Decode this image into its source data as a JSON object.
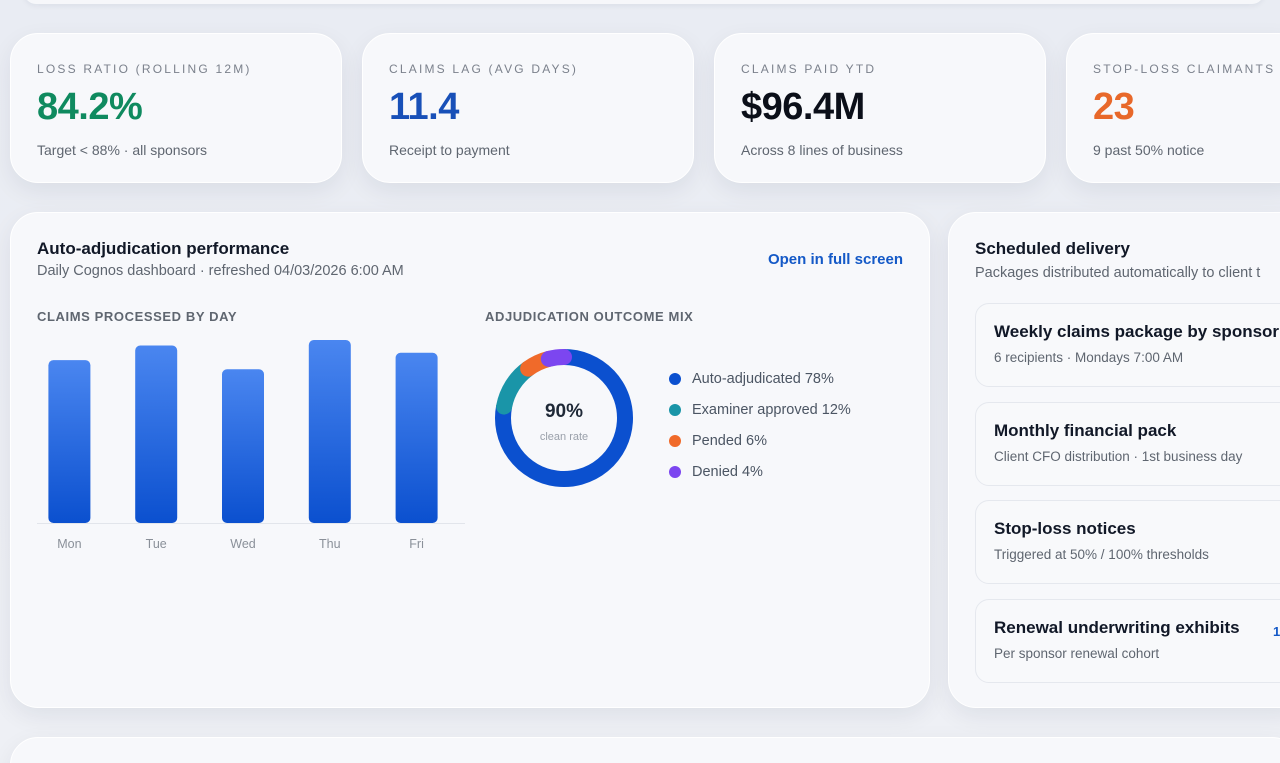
{
  "kpis": [
    {
      "label": "LOSS RATIO (ROLLING 12M)",
      "value": "84.2%",
      "sub": "Target < 88% · all sponsors",
      "color": "#0f8a5f"
    },
    {
      "label": "CLAIMS LAG (AVG DAYS)",
      "value": "11.4",
      "sub": "Receipt to payment",
      "color": "#1850b8"
    },
    {
      "label": "CLAIMS PAID YTD",
      "value": "$96.4M",
      "sub": "Across 8 lines of business",
      "color": "#0b0f19"
    },
    {
      "label": "STOP-LOSS CLAIMANTS",
      "value": "23",
      "sub": "9 past 50% notice",
      "color": "#e8682a"
    }
  ],
  "performance": {
    "title": "Auto-adjudication performance",
    "subtitle": "Daily Cognos dashboard · refreshed 04/03/2026 6:00 AM",
    "link": "Open in full screen",
    "bar_section_label": "CLAIMS PROCESSED BY DAY",
    "donut_section_label": "ADJUDICATION OUTCOME MIX",
    "donut_value": "90%",
    "donut_caption": "clean rate"
  },
  "chart_data": [
    {
      "type": "bar",
      "title": "CLAIMS PROCESSED BY DAY",
      "categories": [
        "Mon",
        "Tue",
        "Wed",
        "Thu",
        "Fri"
      ],
      "values": [
        0.89,
        0.97,
        0.84,
        1.0,
        0.93
      ],
      "ylim": [
        0,
        1
      ],
      "grid": false,
      "color": "#2f6fe6"
    },
    {
      "type": "pie",
      "title": "ADJUDICATION OUTCOME MIX",
      "series": [
        {
          "name": "Auto-adjudicated 78%",
          "value": 78,
          "color": "#0b50cf"
        },
        {
          "name": "Examiner approved 12%",
          "value": 12,
          "color": "#1a95a8"
        },
        {
          "name": "Pended 6%",
          "value": 6,
          "color": "#f06a2a"
        },
        {
          "name": "Denied 4%",
          "value": 4,
          "color": "#7c46f0"
        }
      ],
      "center_label": "90%",
      "center_caption": "clean rate"
    }
  ],
  "schedule": {
    "title": "Scheduled delivery",
    "subtitle": "Packages distributed automatically to client t",
    "items": [
      {
        "name": "Weekly claims package by sponsor",
        "desc": "6 recipients · Mondays 7:00 AM",
        "tag": ""
      },
      {
        "name": "Monthly financial pack",
        "desc": "Client CFO distribution · 1st business day",
        "tag": ""
      },
      {
        "name": "Stop-loss notices",
        "desc": "Triggered at 50% / 100% thresholds",
        "tag": ""
      },
      {
        "name": "Renewal underwriting exhibits",
        "desc": "Per sponsor renewal cohort",
        "tag": "1,"
      }
    ]
  }
}
